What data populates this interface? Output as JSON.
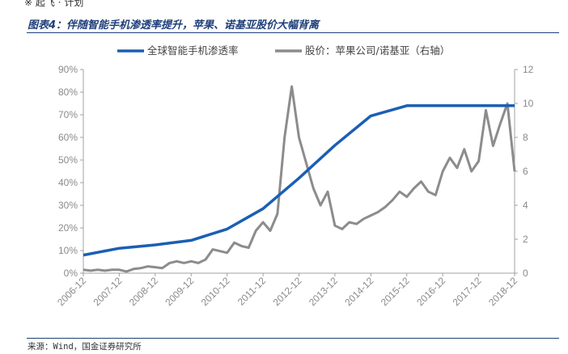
{
  "header": {
    "top_clip": "※ 起飞 · 计划",
    "title": "图表4：伴随智能手机渗透率提升，苹果、诺基亚股价大幅背离"
  },
  "footer": {
    "source": "来源：Wind，国金证券研究所"
  },
  "colors": {
    "penetration": "#1a5fb4",
    "stock": "#8c8c8c",
    "axis": "#a0a0a0",
    "title": "#1f3f7a"
  },
  "chart_data": {
    "type": "line",
    "legend": [
      "全球智能手机渗透率",
      "股价：苹果公司/诺基亚（右轴）"
    ],
    "legend_position": "top-center",
    "grid": false,
    "x_ticks": [
      "2006-12",
      "2007-12",
      "2008-12",
      "2009-12",
      "2010-12",
      "2011-12",
      "2012-12",
      "2013-12",
      "2014-12",
      "2015-12",
      "2016-12",
      "2017-12",
      "2018-12"
    ],
    "y_left": {
      "ticks": [
        "0%",
        "10%",
        "20%",
        "30%",
        "40%",
        "50%",
        "60%",
        "70%",
        "80%",
        "90%"
      ],
      "range": [
        0,
        90
      ]
    },
    "y_right": {
      "ticks": [
        "0",
        "2",
        "4",
        "6",
        "8",
        "10",
        "12"
      ],
      "range": [
        0,
        12
      ]
    },
    "series": [
      {
        "name": "全球智能手机渗透率",
        "axis": "left",
        "x": [
          0,
          1,
          2,
          3,
          4,
          5,
          6,
          7,
          8,
          9,
          10,
          11,
          12
        ],
        "values": [
          8,
          11,
          12.5,
          14.5,
          19.5,
          28.5,
          42,
          56.5,
          69.5,
          74,
          74,
          74,
          74
        ]
      },
      {
        "name": "股价：苹果公司/诺基亚（右轴）",
        "axis": "right",
        "x": [
          0,
          0.2,
          0.4,
          0.6,
          0.8,
          1.0,
          1.2,
          1.4,
          1.6,
          1.8,
          2.0,
          2.2,
          2.4,
          2.6,
          2.8,
          3.0,
          3.2,
          3.4,
          3.6,
          3.8,
          4.0,
          4.2,
          4.4,
          4.6,
          4.8,
          5.0,
          5.2,
          5.4,
          5.6,
          5.8,
          6.0,
          6.2,
          6.4,
          6.6,
          6.8,
          7.0,
          7.2,
          7.4,
          7.6,
          7.8,
          8.0,
          8.2,
          8.4,
          8.6,
          8.8,
          9.0,
          9.2,
          9.4,
          9.6,
          9.8,
          10.0,
          10.2,
          10.4,
          10.6,
          10.8,
          11.0,
          11.2,
          11.4,
          11.6,
          11.8,
          12.0
        ],
        "values": [
          0.2,
          0.15,
          0.2,
          0.15,
          0.2,
          0.2,
          0.1,
          0.25,
          0.3,
          0.4,
          0.35,
          0.3,
          0.6,
          0.7,
          0.6,
          0.7,
          0.6,
          0.8,
          1.4,
          1.3,
          1.2,
          1.8,
          1.6,
          1.5,
          2.5,
          3.0,
          2.5,
          3.5,
          8.0,
          11.0,
          8.0,
          6.5,
          5.0,
          4.0,
          4.8,
          2.8,
          2.6,
          3.0,
          2.9,
          3.2,
          3.4,
          3.6,
          3.9,
          4.3,
          4.8,
          4.5,
          5.0,
          5.4,
          4.8,
          4.6,
          6.0,
          6.8,
          6.2,
          7.3,
          6.0,
          6.6,
          9.6,
          7.5,
          8.8,
          10.0,
          6.0
        ]
      }
    ]
  }
}
